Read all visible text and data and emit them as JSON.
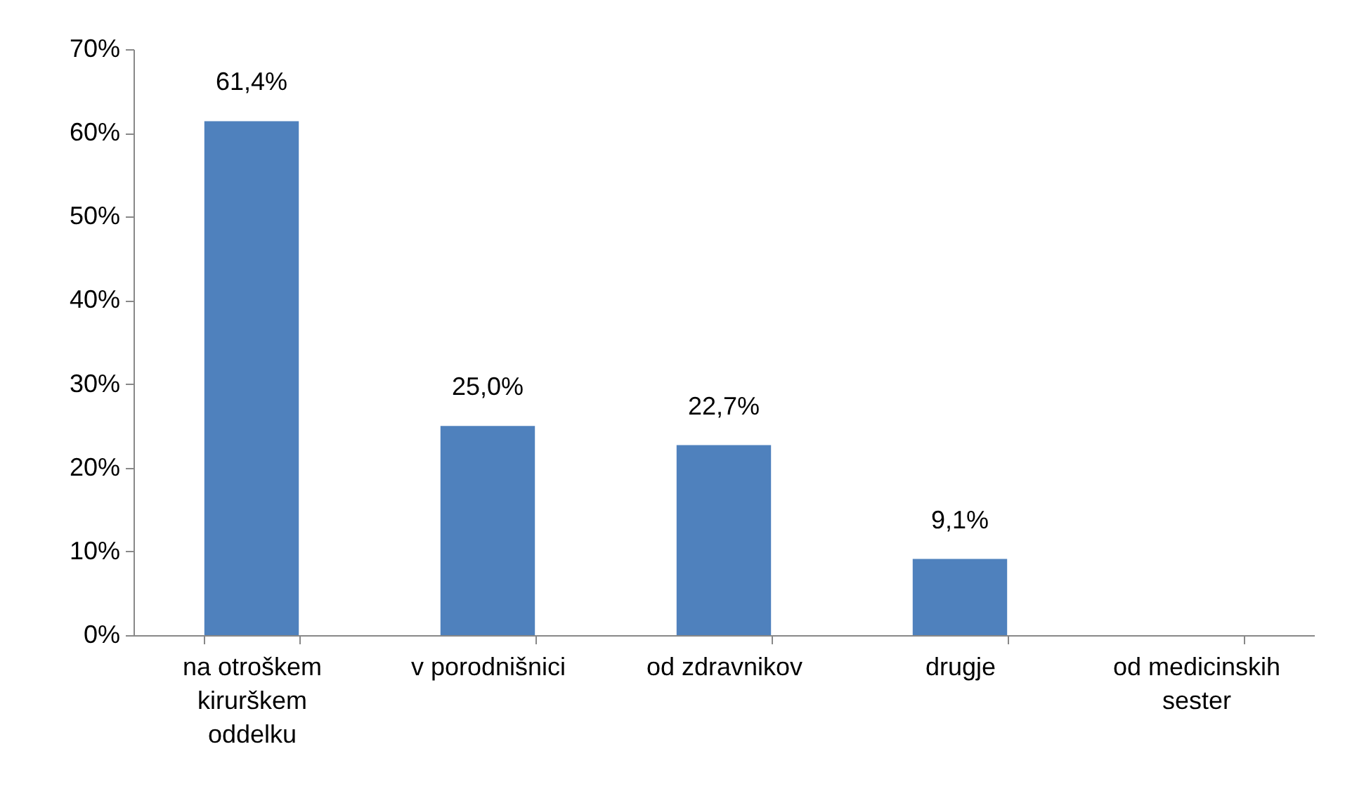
{
  "chart_data": {
    "type": "bar",
    "categories": [
      "na otroškem kirurškem oddelku",
      "v porodnišnici",
      "od zdravnikov",
      "drugje",
      "od medicinskih sester"
    ],
    "values": [
      61.4,
      25.0,
      22.7,
      9.1,
      0
    ],
    "value_labels": [
      "61,4%",
      "25,0%",
      "22,7%",
      "9,1%",
      null
    ],
    "color": "#4f81bd",
    "ylim": [
      0,
      70
    ],
    "yticks": [
      {
        "value": 0,
        "label": "0%"
      },
      {
        "value": 10,
        "label": "10%"
      },
      {
        "value": 20,
        "label": "20%"
      },
      {
        "value": 30,
        "label": "30%"
      },
      {
        "value": 40,
        "label": "40%"
      },
      {
        "value": 50,
        "label": "50%"
      },
      {
        "value": 60,
        "label": "60%"
      },
      {
        "value": 70,
        "label": "70%"
      }
    ],
    "grid": false
  }
}
